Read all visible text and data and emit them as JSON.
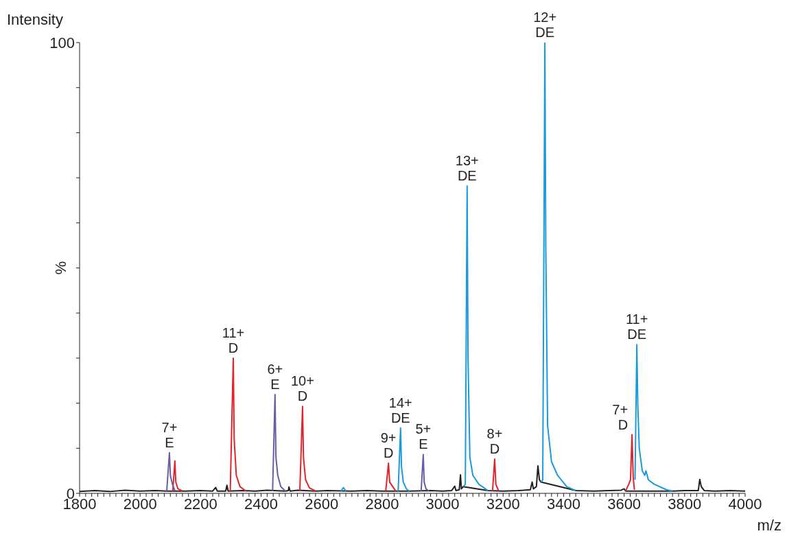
{
  "chart_data": {
    "type": "line",
    "ylabel": "%",
    "xlabel": "m/z",
    "xlim": [
      1800,
      4000
    ],
    "ylim": [
      0,
      100
    ],
    "xticks": [
      1800,
      {
        "value": 1820,
        "label": null
      },
      {
        "value": 1840,
        "label": null
      },
      {
        "value": 1860,
        "label": null
      },
      {
        "value": 1880,
        "label": null
      },
      {
        "value": 1900,
        "label": null
      },
      {
        "value": 1920,
        "label": null
      },
      {
        "value": 1940,
        "label": null
      },
      {
        "value": 1960,
        "label": null
      },
      {
        "value": 1980,
        "label": null
      },
      2000,
      {
        "value": 2020,
        "label": null
      },
      {
        "value": 2040,
        "label": null
      },
      {
        "value": 2060,
        "label": null
      },
      {
        "value": 2080,
        "label": null
      },
      {
        "value": 2100,
        "label": null
      },
      {
        "value": 2120,
        "label": null
      },
      {
        "value": 2140,
        "label": null
      },
      {
        "value": 2160,
        "label": null
      },
      {
        "value": 2180,
        "label": null
      },
      2200,
      {
        "value": 2220,
        "label": null
      },
      {
        "value": 2240,
        "label": null
      },
      {
        "value": 2260,
        "label": null
      },
      {
        "value": 2280,
        "label": null
      },
      {
        "value": 2300,
        "label": null
      },
      {
        "value": 2320,
        "label": null
      },
      {
        "value": 2340,
        "label": null
      },
      {
        "value": 2360,
        "label": null
      },
      {
        "value": 2380,
        "label": null
      },
      2400,
      {
        "value": 2420,
        "label": null
      },
      {
        "value": 2440,
        "label": null
      },
      {
        "value": 2460,
        "label": null
      },
      {
        "value": 2480,
        "label": null
      },
      {
        "value": 2500,
        "label": null
      },
      {
        "value": 2520,
        "label": null
      },
      {
        "value": 2540,
        "label": null
      },
      {
        "value": 2560,
        "label": null
      },
      {
        "value": 2580,
        "label": null
      },
      2600,
      {
        "value": 2620,
        "label": null
      },
      {
        "value": 2640,
        "label": null
      },
      {
        "value": 2660,
        "label": null
      },
      {
        "value": 2680,
        "label": null
      },
      {
        "value": 2700,
        "label": null
      },
      {
        "value": 2720,
        "label": null
      },
      {
        "value": 2740,
        "label": null
      },
      {
        "value": 2760,
        "label": null
      },
      {
        "value": 2780,
        "label": null
      },
      2800,
      {
        "value": 2820,
        "label": null
      },
      {
        "value": 2840,
        "label": null
      },
      {
        "value": 2860,
        "label": null
      },
      {
        "value": 2880,
        "label": null
      },
      {
        "value": 2900,
        "label": null
      },
      {
        "value": 2920,
        "label": null
      },
      {
        "value": 2940,
        "label": null
      },
      {
        "value": 2960,
        "label": null
      },
      {
        "value": 2980,
        "label": null
      },
      3000,
      {
        "value": 3020,
        "label": null
      },
      {
        "value": 3040,
        "label": null
      },
      {
        "value": 3060,
        "label": null
      },
      {
        "value": 3080,
        "label": null
      },
      {
        "value": 3100,
        "label": null
      },
      {
        "value": 3120,
        "label": null
      },
      {
        "value": 3140,
        "label": null
      },
      {
        "value": 3160,
        "label": null
      },
      {
        "value": 3180,
        "label": null
      },
      3200,
      {
        "value": 3220,
        "label": null
      },
      {
        "value": 3240,
        "label": null
      },
      {
        "value": 3260,
        "label": null
      },
      {
        "value": 3280,
        "label": null
      },
      {
        "value": 3300,
        "label": null
      },
      {
        "value": 3320,
        "label": null
      },
      {
        "value": 3340,
        "label": null
      },
      {
        "value": 3360,
        "label": null
      },
      {
        "value": 3380,
        "label": null
      },
      3400,
      {
        "value": 3420,
        "label": null
      },
      {
        "value": 3440,
        "label": null
      },
      {
        "value": 3460,
        "label": null
      },
      {
        "value": 3480,
        "label": null
      },
      {
        "value": 3500,
        "label": null
      },
      {
        "value": 3520,
        "label": null
      },
      {
        "value": 3540,
        "label": null
      },
      {
        "value": 3560,
        "label": null
      },
      {
        "value": 3580,
        "label": null
      },
      3600,
      {
        "value": 3620,
        "label": null
      },
      {
        "value": 3640,
        "label": null
      },
      {
        "value": 3660,
        "label": null
      },
      {
        "value": 3680,
        "label": null
      },
      {
        "value": 3700,
        "label": null
      },
      {
        "value": 3720,
        "label": null
      },
      {
        "value": 3740,
        "label": null
      },
      {
        "value": 3760,
        "label": null
      },
      {
        "value": 3780,
        "label": null
      },
      3800,
      {
        "value": 3820,
        "label": null
      },
      {
        "value": 3840,
        "label": null
      },
      {
        "value": 3860,
        "label": null
      },
      {
        "value": 3880,
        "label": null
      },
      {
        "value": 3900,
        "label": null
      },
      {
        "value": 3920,
        "label": null
      },
      {
        "value": 3940,
        "label": null
      },
      {
        "value": 3960,
        "label": null
      },
      {
        "value": 3980,
        "label": null
      },
      4000
    ],
    "yticks": [
      0,
      {
        "value": 10,
        "label": null
      },
      {
        "value": 20,
        "label": null
      },
      {
        "value": 30,
        "label": null
      },
      {
        "value": 40,
        "label": null
      },
      {
        "value": 50,
        "label": null
      },
      {
        "value": 60,
        "label": null
      },
      {
        "value": 70,
        "label": null
      },
      {
        "value": 80,
        "label": null
      },
      {
        "value": 90,
        "label": null
      },
      100
    ],
    "line_style": "solid",
    "series": [
      {
        "color": "#231f20",
        "x": [
          1800,
          1850,
          1900,
          1950,
          2000,
          2050,
          2088,
          2150,
          2200,
          2240,
          2250,
          2255,
          2283,
          2287,
          2291,
          2340,
          2380,
          2420,
          2480,
          2490,
          2492,
          2496,
          2520,
          2580,
          2620,
          2700,
          2750,
          2800,
          2890,
          2960,
          3000,
          3030,
          3040,
          3044,
          3055,
          3059,
          3062,
          3068,
          3150,
          3200,
          3250,
          3290,
          3296,
          3300,
          3310,
          3315,
          3320,
          3325,
          3441,
          3500,
          3550,
          3590,
          3600,
          3605,
          3760,
          3800,
          3845,
          3850,
          3855,
          3865,
          3900,
          3950,
          4000
        ],
        "values": [
          0.4,
          0.6,
          0.4,
          0.7,
          0.5,
          0.6,
          0.5,
          0.5,
          0.6,
          0.5,
          1.3,
          0.5,
          0.5,
          1.8,
          0.5,
          0.6,
          0.5,
          0.7,
          0.5,
          0.6,
          1.4,
          0.5,
          0.7,
          0.5,
          0.6,
          0.5,
          0.6,
          0.5,
          0.5,
          0.6,
          0.5,
          0.6,
          1.6,
          0.6,
          0.8,
          4.1,
          1.0,
          1.5,
          0.6,
          0.5,
          0.6,
          0.8,
          2.5,
          1.0,
          1.5,
          6.1,
          3.0,
          2.5,
          0.6,
          0.5,
          0.6,
          0.7,
          1.0,
          0.5,
          0.5,
          0.6,
          0.6,
          3.1,
          1.5,
          0.6,
          0.5,
          0.6,
          0.5
        ]
      },
      {
        "color": "#e0242b",
        "x": [
          2108,
          2115,
          2118,
          2125,
          2140,
          2141,
          2298,
          2308,
          2311,
          2318,
          2330,
          2350,
          2351,
          2528,
          2537,
          2540,
          2547,
          2560,
          2580,
          2581,
          2812,
          2821,
          2825,
          2835,
          2845,
          2846,
          3165,
          3172,
          3176,
          3185,
          3186,
          3605,
          3615,
          3621,
          3626,
          3630,
          3634
        ],
        "values": [
          0.5,
          7.2,
          2.5,
          1.0,
          0.5,
          null,
          0.5,
          30.0,
          12.0,
          4.0,
          1.5,
          0.5,
          null,
          0.5,
          19.3,
          8.0,
          3.0,
          1.2,
          0.5,
          null,
          0.5,
          6.7,
          2.5,
          1.5,
          0.5,
          null,
          0.5,
          7.6,
          2.0,
          0.5,
          null,
          0.5,
          2.0,
          3.0,
          13.0,
          3.5,
          0.8
        ]
      },
      {
        "color": "#6a5aa8",
        "x": [
          2088,
          2097,
          2100,
          2107,
          2115,
          2116,
          2438,
          2446,
          2449,
          2455,
          2465,
          2480,
          2481,
          2929,
          2936,
          2939,
          2945,
          2955
        ],
        "values": [
          0.5,
          9.0,
          4.0,
          2.0,
          0.6,
          null,
          0.5,
          21.9,
          8.0,
          4.0,
          1.5,
          0.5,
          null,
          0.5,
          8.6,
          2.5,
          1.0,
          0.5
        ]
      },
      {
        "color": "#1a9ad9",
        "x": [
          2664,
          2672,
          2680,
          2681,
          2853,
          2861,
          2864,
          2870,
          2880,
          2890,
          2891,
          3068,
          3075,
          3081,
          3084,
          3090,
          3100,
          3120,
          3150,
          3151,
          3325,
          3331,
          3338,
          3341,
          3347,
          3360,
          3380,
          3410,
          3440,
          3441,
          3636,
          3642,
          3645,
          3650,
          3660,
          3668,
          3672,
          3680,
          3700,
          3740,
          3760
        ],
        "values": [
          0.5,
          1.3,
          0.5,
          null,
          0.5,
          14.5,
          6.0,
          2.5,
          1.0,
          0.5,
          null,
          1.5,
          2.0,
          68.2,
          30.0,
          8.0,
          4.0,
          2.0,
          0.6,
          null,
          2.5,
          3.0,
          100,
          55.0,
          15.0,
          7.0,
          4.0,
          1.5,
          0.6,
          null,
          3.0,
          33.0,
          20.0,
          10.0,
          5.0,
          4.0,
          5.0,
          3.0,
          2.0,
          0.8,
          0.5
        ]
      }
    ],
    "annotations": [
      "Intensity",
      {
        "text": "7+\nE",
        "x": 2097,
        "y": 9.0
      },
      {
        "text": "11+\nD",
        "x": 2308,
        "y": 30.0
      },
      {
        "text": "6+\nE",
        "x": 2446,
        "y": 21.9
      },
      {
        "text": "10+\nD",
        "x": 2537,
        "y": 19.3
      },
      {
        "text": "9+\nD",
        "x": 2821,
        "y": 6.7
      },
      {
        "text": "14+\nDE",
        "x": 2861,
        "y": 14.5
      },
      {
        "text": "5+\nE",
        "x": 2936,
        "y": 8.6
      },
      {
        "text": "13+\nDE",
        "x": 3081,
        "y": 68.2
      },
      {
        "text": "8+\nD",
        "x": 3172,
        "y": 7.6
      },
      {
        "text": "12+\nDE",
        "x": 3338,
        "y": 100
      },
      {
        "text": "7+\nD",
        "x": 3626,
        "y": 13.0
      },
      {
        "text": "11+\nDE",
        "x": 3642,
        "y": 33.0
      }
    ]
  }
}
